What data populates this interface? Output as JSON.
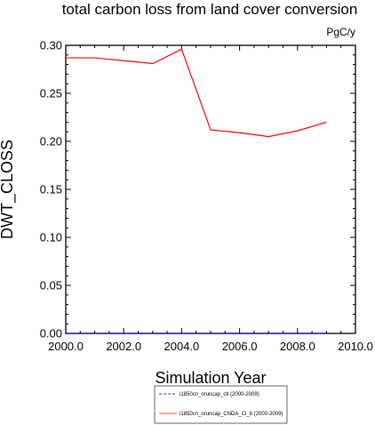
{
  "chart_data": {
    "type": "line",
    "title": "total carbon loss from land cover conversion",
    "units": "PgC/y",
    "xlabel": "Simulation Year",
    "ylabel": "DWT_CLOSS",
    "xlim": [
      2000,
      2010
    ],
    "ylim": [
      0,
      0.3
    ],
    "xticks": [
      "2000.0",
      "2002.0",
      "2004.0",
      "2006.0",
      "2008.0",
      "2010.0"
    ],
    "yticks": [
      "0.00",
      "0.05",
      "0.10",
      "0.15",
      "0.20",
      "0.25",
      "0.30"
    ],
    "grid": false,
    "legend_position": "bottom-center",
    "series": [
      {
        "name": "i1850cn_oruncap_ctl (2000-2009)",
        "color": "#0000ff",
        "dash": "dashed",
        "x": [
          2000,
          2001,
          2002,
          2003,
          2004,
          2005,
          2006,
          2007,
          2008,
          2009
        ],
        "values": [
          0,
          0,
          0,
          0,
          0,
          0,
          0,
          0,
          0,
          0
        ]
      },
      {
        "name": "i1850cn_oruncap_CNDA_Cl_b (2000-2009)",
        "color": "#ff0000",
        "dash": "solid",
        "x": [
          2000,
          2001,
          2002,
          2003,
          2004,
          2005,
          2006,
          2007,
          2008,
          2009
        ],
        "values": [
          0.287,
          0.287,
          0.284,
          0.281,
          0.296,
          0.212,
          0.209,
          0.205,
          0.211,
          0.22
        ]
      }
    ]
  }
}
